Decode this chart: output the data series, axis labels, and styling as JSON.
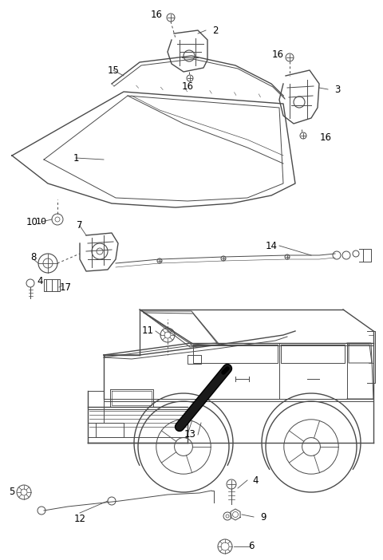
{
  "bg_color": "#ffffff",
  "line_color": "#4a4a4a",
  "label_color": "#000000",
  "fig_width": 4.8,
  "fig_height": 7.02,
  "dpi": 100
}
